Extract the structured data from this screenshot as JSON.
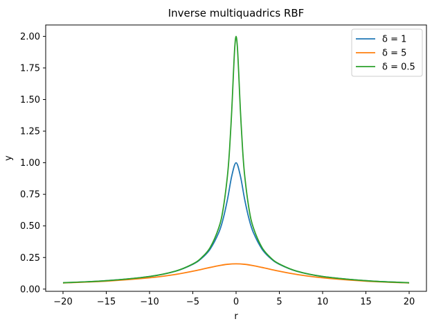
{
  "chart_data": {
    "type": "line",
    "title": "Inverse multiquadrics RBF",
    "xlabel": "r",
    "ylabel": "y",
    "xlim": [
      -22,
      22
    ],
    "ylim": [
      -0.0175,
      2.09
    ],
    "xticks": [
      -20,
      -15,
      -10,
      -5,
      0,
      5,
      10,
      15,
      20
    ],
    "xtick_labels": [
      "−20",
      "−15",
      "−10",
      "−5",
      "0",
      "5",
      "10",
      "15",
      "20"
    ],
    "yticks": [
      0,
      0.25,
      0.5,
      0.75,
      1.0,
      1.25,
      1.5,
      1.75,
      2.0
    ],
    "ytick_labels": [
      "0.00",
      "0.25",
      "0.50",
      "0.75",
      "1.00",
      "1.25",
      "1.50",
      "1.75",
      "2.00"
    ],
    "grid": false,
    "legend_position": "top-right",
    "series": [
      {
        "name": "δ = 1",
        "color": "#1f77b4",
        "x": [
          -20,
          -15,
          -10,
          -7,
          -5,
          -4,
          -3,
          -2,
          -1.5,
          -1,
          -0.5,
          0,
          0.5,
          1,
          1.5,
          2,
          3,
          4,
          5,
          7,
          10,
          15,
          20
        ],
        "y": [
          0.0499,
          0.0665,
          0.0995,
          0.1414,
          0.1961,
          0.2425,
          0.3162,
          0.4472,
          0.5547,
          0.7071,
          0.8944,
          1.0,
          0.8944,
          0.7071,
          0.5547,
          0.4472,
          0.3162,
          0.2425,
          0.1961,
          0.1414,
          0.0995,
          0.0665,
          0.0499
        ]
      },
      {
        "name": "δ = 5",
        "color": "#ff7f0e",
        "x": [
          -20,
          -15,
          -10,
          -7,
          -5,
          -4,
          -3,
          -2,
          -1,
          0,
          1,
          2,
          3,
          4,
          5,
          7,
          10,
          15,
          20
        ],
        "y": [
          0.0485,
          0.0632,
          0.0894,
          0.1162,
          0.1414,
          0.1562,
          0.1715,
          0.1857,
          0.1961,
          0.2,
          0.1961,
          0.1857,
          0.1715,
          0.1562,
          0.1414,
          0.1162,
          0.0894,
          0.0632,
          0.0485
        ]
      },
      {
        "name": "δ = 0.5",
        "color": "#2ca02c",
        "x": [
          -20,
          -15,
          -10,
          -7,
          -5,
          -4,
          -3,
          -2,
          -1.5,
          -1,
          -0.75,
          -0.5,
          -0.3,
          -0.15,
          0,
          0.15,
          0.3,
          0.5,
          0.75,
          1,
          1.5,
          2,
          3,
          4,
          5,
          7,
          10,
          15,
          20
        ],
        "y": [
          0.05,
          0.0666,
          0.0999,
          0.1425,
          0.199,
          0.248,
          0.3288,
          0.4851,
          0.6325,
          0.8944,
          1.1094,
          1.4142,
          1.715,
          1.9157,
          2.0,
          1.9157,
          1.715,
          1.4142,
          1.1094,
          0.8944,
          0.6325,
          0.4851,
          0.3288,
          0.248,
          0.199,
          0.1425,
          0.0999,
          0.0666,
          0.05
        ]
      }
    ]
  }
}
